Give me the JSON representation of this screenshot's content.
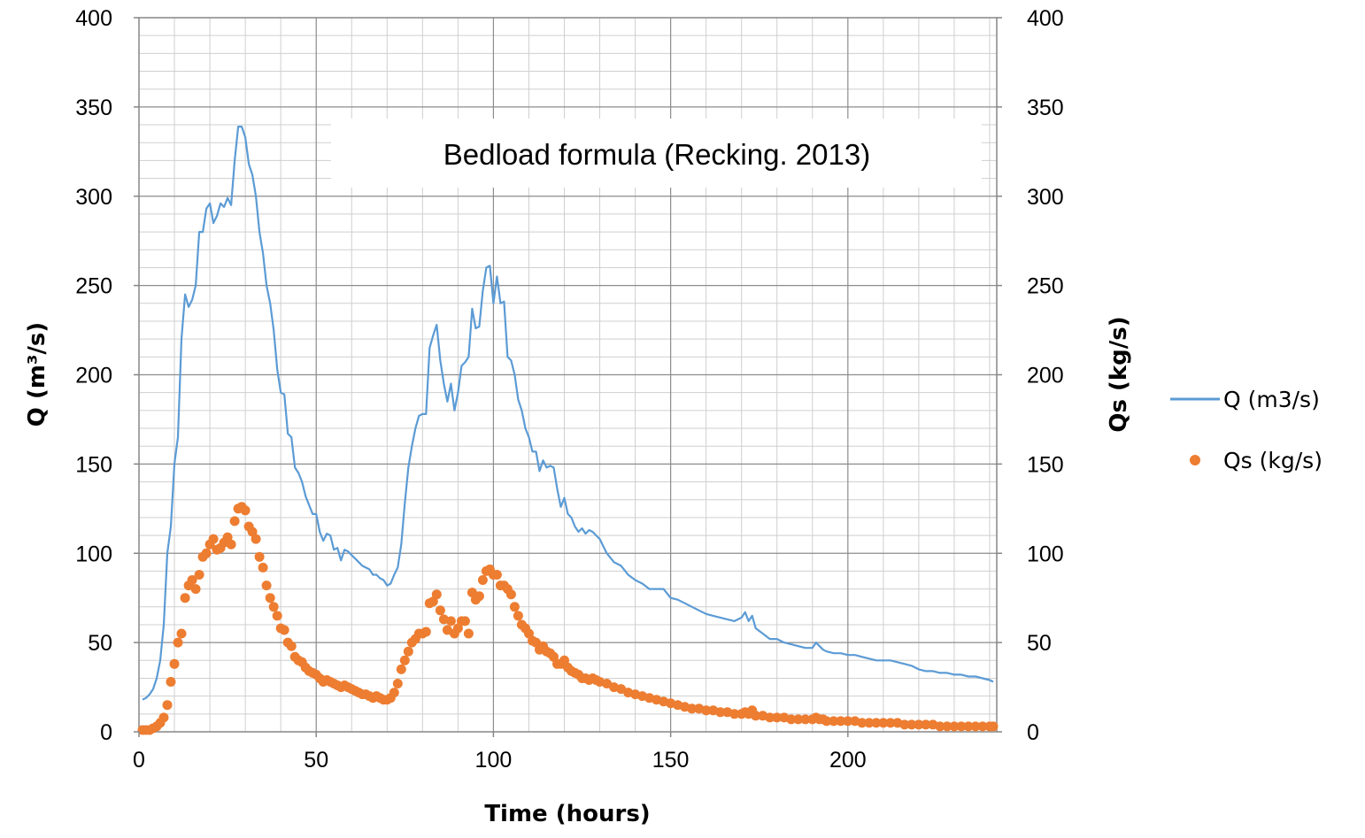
{
  "chart_data": {
    "type": "line",
    "annotation": "Bedload formula (Recking. 2013)",
    "xlabel": "Time (hours)",
    "ylabel_left": "Q (m³/s)",
    "ylabel_right": "Qs (kg/s)",
    "xlim": [
      0,
      242
    ],
    "ylim_left": [
      0,
      400
    ],
    "ylim_right": [
      0,
      400
    ],
    "x_ticks": [
      0,
      50,
      100,
      150,
      200
    ],
    "y_ticks": [
      0,
      50,
      100,
      150,
      200,
      250,
      300,
      350,
      400
    ],
    "grid": true,
    "legend_position": "right",
    "series": [
      {
        "name": "Q (m3/s)",
        "axis": "left",
        "style": "line",
        "color": "#5B9BD5",
        "x": [
          1,
          2,
          3,
          4,
          5,
          6,
          7,
          8,
          9,
          10,
          11,
          12,
          13,
          14,
          15,
          16,
          17,
          18,
          19,
          20,
          21,
          22,
          23,
          24,
          25,
          26,
          27,
          28,
          29,
          30,
          31,
          32,
          33,
          34,
          35,
          36,
          37,
          38,
          39,
          40,
          41,
          42,
          43,
          44,
          45,
          46,
          47,
          48,
          49,
          50,
          51,
          52,
          53,
          54,
          55,
          56,
          57,
          58,
          59,
          60,
          61,
          62,
          63,
          64,
          65,
          66,
          67,
          68,
          69,
          70,
          71,
          72,
          73,
          74,
          75,
          76,
          77,
          78,
          79,
          80,
          81,
          82,
          83,
          84,
          85,
          86,
          87,
          88,
          89,
          90,
          91,
          92,
          93,
          94,
          95,
          96,
          97,
          98,
          99,
          100,
          101,
          102,
          103,
          104,
          105,
          106,
          107,
          108,
          109,
          110,
          111,
          112,
          113,
          114,
          115,
          116,
          117,
          118,
          119,
          120,
          121,
          122,
          123,
          124,
          125,
          126,
          127,
          128,
          129,
          130,
          132,
          134,
          136,
          138,
          140,
          142,
          144,
          146,
          148,
          150,
          152,
          154,
          156,
          158,
          160,
          162,
          164,
          166,
          168,
          170,
          171,
          172,
          173,
          174,
          176,
          178,
          180,
          182,
          184,
          186,
          188,
          190,
          191,
          192,
          193,
          194,
          196,
          198,
          200,
          202,
          204,
          206,
          208,
          210,
          212,
          214,
          216,
          218,
          220,
          222,
          224,
          226,
          228,
          230,
          232,
          234,
          236,
          238,
          240,
          241
        ],
        "y": [
          18,
          19,
          21,
          24,
          30,
          40,
          60,
          100,
          115,
          150,
          165,
          220,
          245,
          238,
          242,
          250,
          280,
          280,
          293,
          296,
          285,
          289,
          296,
          294,
          299,
          295,
          320,
          339,
          339,
          333,
          318,
          312,
          300,
          280,
          268,
          250,
          240,
          225,
          203,
          190,
          189,
          167,
          165,
          148,
          145,
          140,
          132,
          127,
          122,
          122,
          112,
          107,
          111,
          110,
          102,
          103,
          96,
          102,
          101,
          99,
          97,
          95,
          93,
          92,
          91,
          88,
          88,
          86,
          85,
          82,
          83,
          88,
          92,
          105,
          128,
          148,
          160,
          170,
          177,
          178,
          178,
          215,
          222,
          228,
          208,
          195,
          185,
          195,
          180,
          190,
          205,
          207,
          210,
          237,
          226,
          227,
          247,
          260,
          261,
          240,
          255,
          240,
          241,
          210,
          208,
          200,
          186,
          180,
          170,
          165,
          157,
          157,
          146,
          152,
          148,
          149,
          148,
          136,
          126,
          131,
          122,
          120,
          115,
          112,
          114,
          111,
          113,
          112,
          110,
          108,
          100,
          95,
          93,
          88,
          85,
          83,
          80,
          80,
          80,
          75,
          74,
          72,
          70,
          68,
          66,
          65,
          64,
          63,
          62,
          64,
          67,
          62,
          65,
          58,
          55,
          52,
          52,
          50,
          49,
          48,
          47,
          47,
          50,
          48,
          46,
          45,
          44,
          44,
          43,
          43,
          42,
          41,
          40,
          40,
          40,
          39,
          38,
          37,
          35,
          34,
          34,
          33,
          33,
          32,
          32,
          31,
          31,
          30,
          29,
          28
        ]
      },
      {
        "name": "Qs (kg/s)",
        "axis": "right",
        "style": "dots",
        "color": "#ED7D31",
        "x": [
          1,
          2,
          3,
          4,
          5,
          6,
          7,
          8,
          9,
          10,
          11,
          12,
          13,
          14,
          15,
          16,
          17,
          18,
          19,
          20,
          21,
          22,
          23,
          24,
          25,
          26,
          27,
          28,
          29,
          30,
          31,
          32,
          33,
          34,
          35,
          36,
          37,
          38,
          39,
          40,
          41,
          42,
          43,
          44,
          45,
          46,
          47,
          48,
          49,
          50,
          51,
          52,
          53,
          54,
          55,
          56,
          57,
          58,
          59,
          60,
          61,
          62,
          63,
          64,
          65,
          66,
          67,
          68,
          69,
          70,
          71,
          72,
          73,
          74,
          75,
          76,
          77,
          78,
          79,
          80,
          81,
          82,
          83,
          84,
          85,
          86,
          87,
          88,
          89,
          90,
          91,
          92,
          93,
          94,
          95,
          96,
          97,
          98,
          99,
          100,
          101,
          102,
          103,
          104,
          105,
          106,
          107,
          108,
          109,
          110,
          111,
          112,
          113,
          114,
          115,
          116,
          117,
          118,
          119,
          120,
          121,
          122,
          123,
          124,
          125,
          126,
          127,
          128,
          129,
          130,
          132,
          134,
          136,
          138,
          140,
          142,
          144,
          146,
          148,
          150,
          152,
          154,
          156,
          158,
          160,
          162,
          164,
          166,
          168,
          170,
          171,
          172,
          173,
          174,
          176,
          178,
          180,
          182,
          184,
          186,
          188,
          190,
          191,
          192,
          193,
          194,
          196,
          198,
          200,
          202,
          204,
          206,
          208,
          210,
          212,
          214,
          216,
          218,
          220,
          222,
          224,
          226,
          228,
          230,
          232,
          234,
          236,
          238,
          240,
          241
        ],
        "y": [
          1,
          1,
          1,
          2,
          3,
          5,
          8,
          15,
          28,
          38,
          50,
          55,
          75,
          82,
          85,
          80,
          88,
          98,
          100,
          105,
          108,
          102,
          103,
          106,
          109,
          105,
          118,
          125,
          126,
          124,
          115,
          112,
          108,
          98,
          92,
          82,
          75,
          70,
          65,
          58,
          57,
          50,
          48,
          42,
          40,
          39,
          36,
          34,
          33,
          32,
          30,
          28,
          29,
          28,
          27,
          26,
          25,
          26,
          25,
          24,
          23,
          22,
          21,
          21,
          20,
          19,
          20,
          19,
          18,
          18,
          19,
          22,
          27,
          35,
          40,
          45,
          50,
          52,
          55,
          55,
          56,
          72,
          73,
          77,
          68,
          63,
          57,
          62,
          55,
          58,
          62,
          62,
          55,
          78,
          74,
          76,
          85,
          90,
          91,
          88,
          88,
          82,
          82,
          80,
          77,
          70,
          65,
          60,
          58,
          55,
          51,
          50,
          46,
          48,
          45,
          44,
          42,
          38,
          38,
          40,
          36,
          34,
          33,
          32,
          30,
          30,
          29,
          30,
          29,
          28,
          27,
          25,
          24,
          22,
          21,
          20,
          19,
          18,
          17,
          16,
          15,
          14,
          13,
          13,
          12,
          12,
          11,
          11,
          10,
          10,
          11,
          10,
          12,
          9,
          9,
          8,
          8,
          8,
          7,
          7,
          7,
          7,
          8,
          7,
          7,
          6,
          6,
          6,
          6,
          6,
          5,
          5,
          5,
          5,
          5,
          5,
          4,
          4,
          4,
          4,
          4,
          3,
          3,
          3,
          3,
          3,
          3,
          3,
          3,
          3
        ]
      }
    ]
  }
}
